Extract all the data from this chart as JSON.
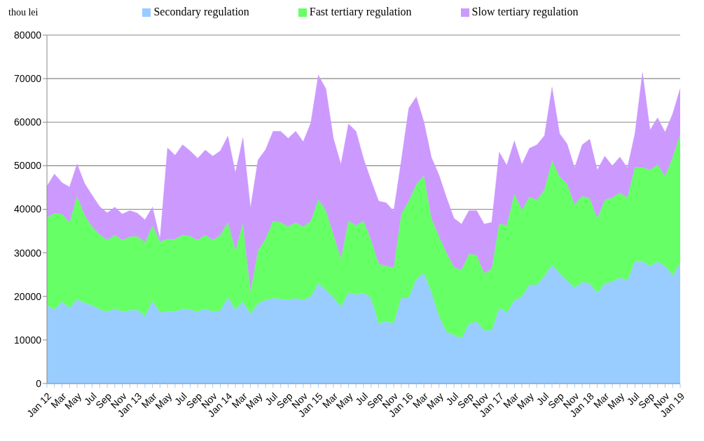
{
  "chart_data": {
    "type": "area",
    "stacked": true,
    "ylabel": "thou lei",
    "categories": [
      "Jan 12",
      null,
      "Mar",
      null,
      "May",
      null,
      "Jul",
      null,
      "Sep",
      null,
      "Nov",
      null,
      "Jan 13",
      null,
      "Mar",
      null,
      "May",
      null,
      "Jul",
      null,
      "Sep",
      null,
      "Nov",
      null,
      "Jan 14",
      null,
      "Mar",
      null,
      "May",
      null,
      "Jul",
      null,
      "Sep",
      null,
      "Nov",
      null,
      "Jan 15",
      null,
      "Mar",
      null,
      "May",
      null,
      "Jul",
      null,
      "Sep",
      null,
      "Nov",
      null,
      "Jan 16",
      null,
      "Mar",
      null,
      "May",
      null,
      "Jul",
      null,
      "Sep",
      null,
      "Nov",
      null,
      "Jan 17",
      null,
      "Mar",
      null,
      "May",
      null,
      "Jul",
      null,
      "Sep",
      null,
      "Nov",
      null,
      "Jan 18",
      null,
      "Mar",
      null,
      "May",
      null,
      "Jul",
      null,
      "Sep",
      null,
      "Nov",
      null,
      "Jan 19"
    ],
    "series": [
      {
        "name": "Secondary regulation",
        "color": "#99ccff",
        "values": [
          17900,
          17000,
          18800,
          17400,
          19300,
          18500,
          18000,
          17000,
          16500,
          17200,
          16500,
          16800,
          16900,
          15400,
          19000,
          16300,
          16500,
          16500,
          17200,
          17000,
          16500,
          17200,
          16500,
          16800,
          19800,
          17000,
          18800,
          16000,
          18400,
          19200,
          19600,
          19400,
          19200,
          19600,
          19200,
          20000,
          23000,
          21500,
          19800,
          17600,
          20900,
          20400,
          20900,
          19600,
          13800,
          14300,
          13800,
          19800,
          19800,
          23900,
          25400,
          21000,
          15500,
          11900,
          11100,
          10400,
          13800,
          14200,
          12200,
          12200,
          17400,
          16300,
          19100,
          20000,
          22700,
          22700,
          24700,
          27200,
          25300,
          23600,
          22000,
          23300,
          23000,
          20800,
          23000,
          23400,
          24300,
          23700,
          28100,
          28100,
          27000,
          28000,
          27000,
          24800,
          27700
        ]
      },
      {
        "name": "Fast tertiary regulation",
        "color": "#66ff66",
        "values": [
          20200,
          22100,
          20100,
          19600,
          23700,
          20100,
          18000,
          17200,
          16400,
          16900,
          16400,
          16900,
          16900,
          17000,
          17200,
          16300,
          16700,
          16600,
          16900,
          16800,
          16400,
          16900,
          16400,
          17200,
          17200,
          13500,
          17900,
          5000,
          12100,
          14000,
          17700,
          17600,
          16800,
          17400,
          16800,
          17300,
          19200,
          18200,
          14400,
          11100,
          16400,
          15900,
          16400,
          13300,
          13700,
          12700,
          12800,
          19100,
          22100,
          21800,
          22400,
          16900,
          18300,
          18100,
          15600,
          15700,
          16000,
          15200,
          13100,
          14100,
          19300,
          20000,
          24400,
          19800,
          20100,
          19400,
          19800,
          24000,
          22200,
          22200,
          19100,
          19700,
          19500,
          17100,
          19100,
          19300,
          19500,
          19000,
          21500,
          21500,
          22000,
          22300,
          20600,
          27100,
          29500
        ]
      },
      {
        "name": "Slow tertiary regulation",
        "color": "#cc99ff",
        "values": [
          7200,
          9000,
          7200,
          8100,
          7400,
          7300,
          7200,
          6400,
          6300,
          6400,
          6000,
          6000,
          5300,
          5200,
          4300,
          600,
          20900,
          19300,
          20700,
          19600,
          18800,
          19500,
          19300,
          19400,
          19800,
          17900,
          19700,
          19300,
          20800,
          20500,
          20600,
          20900,
          20300,
          20900,
          19500,
          22500,
          28600,
          28000,
          22100,
          21600,
          22300,
          21600,
          14300,
          13700,
          14400,
          14500,
          13000,
          12200,
          21300,
          20100,
          12300,
          14000,
          14100,
          12700,
          11200,
          10500,
          9900,
          10300,
          11300,
          10700,
          16400,
          13800,
          12200,
          10500,
          11200,
          12700,
          12400,
          16800,
          9900,
          9200,
          8400,
          11800,
          13600,
          11100,
          10100,
          7300,
          8200,
          6800,
          7800,
          21800,
          9200,
          10700,
          10100,
          10000,
          10500
        ]
      }
    ],
    "ylim": [
      0,
      80000
    ],
    "yticks": [
      0,
      10000,
      20000,
      30000,
      40000,
      50000,
      60000,
      70000,
      80000
    ],
    "grid": "y",
    "legend": "top"
  }
}
